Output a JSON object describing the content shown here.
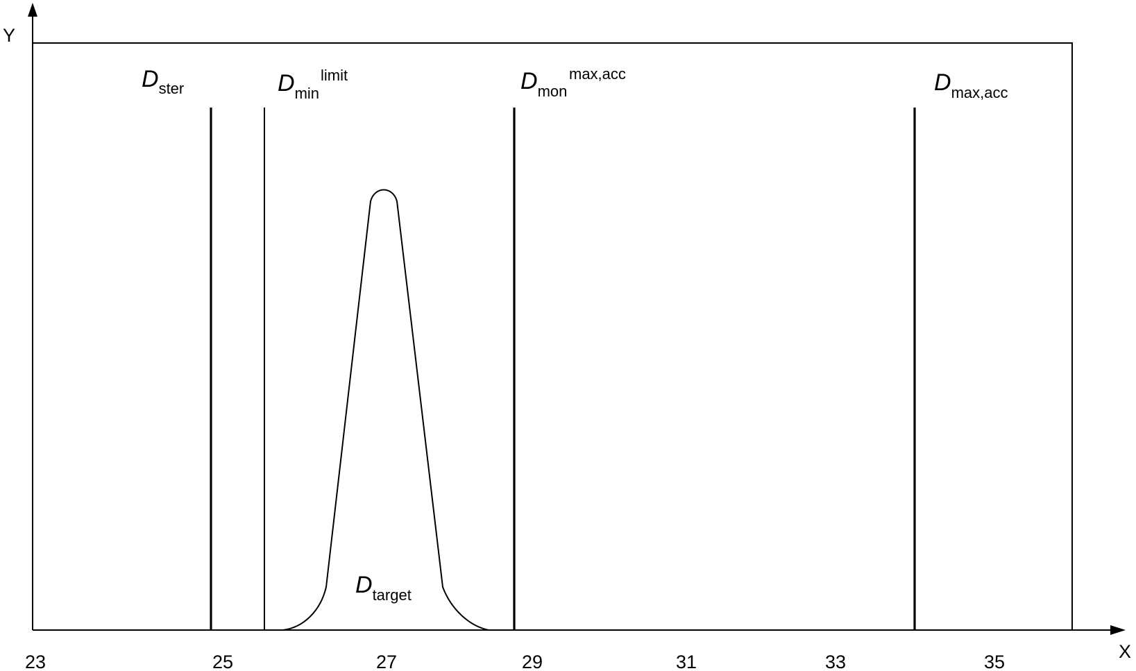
{
  "axes": {
    "x_name": "X",
    "y_name": "Y",
    "x_ticks": [
      "23",
      "25",
      "27",
      "29",
      "31",
      "33",
      "35"
    ]
  },
  "markers": {
    "d_ster": {
      "symbol": "D",
      "sub": "ster",
      "x": 24.8
    },
    "d_min_limit": {
      "symbol": "D",
      "sub": "min",
      "sup": "limit",
      "x": 25.5
    },
    "d_mon_max_acc": {
      "symbol": "D",
      "sub": "mon",
      "sup": "max,acc",
      "x": 28.8
    },
    "d_max_acc": {
      "symbol": "D",
      "sub": "max,acc",
      "x": 34.0
    }
  },
  "curve": {
    "label_symbol": "D",
    "label_sub": "target",
    "peak_x": 27.0,
    "shape": "narrow peak"
  }
}
